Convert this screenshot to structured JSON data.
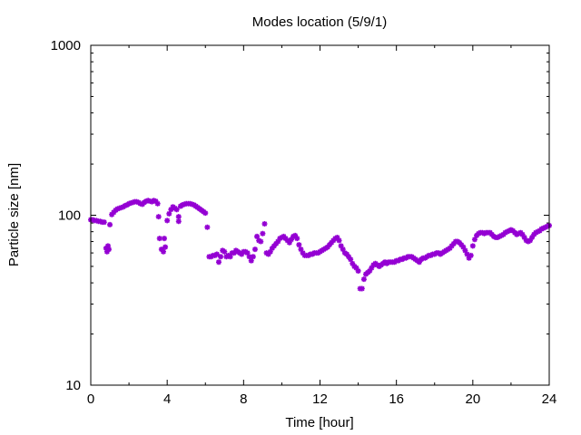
{
  "chart_data": {
    "type": "scatter",
    "title": "Modes location (5/9/1)",
    "xlabel": "Time [hour]",
    "ylabel": "Particle size [nm]",
    "xlim": [
      0,
      24
    ],
    "ylim": [
      10,
      1000
    ],
    "yscale": "log",
    "grid": false,
    "legend": "none",
    "x_ticks": [
      0,
      4,
      8,
      12,
      16,
      20,
      24
    ],
    "x_minor_ticks": [
      2,
      6,
      10,
      14,
      18,
      22
    ],
    "y_ticks": [
      10,
      100,
      1000
    ],
    "y_tick_labels": [
      "10",
      "100",
      "1000"
    ],
    "marker_color": "#9400d3",
    "series": [
      {
        "points": [
          [
            0.0,
            94
          ],
          [
            0.1,
            94
          ],
          [
            0.2,
            93
          ],
          [
            0.3,
            93
          ],
          [
            0.4,
            92
          ],
          [
            0.5,
            92
          ],
          [
            0.6,
            91
          ],
          [
            0.7,
            91
          ],
          [
            0.8,
            64
          ],
          [
            0.85,
            61
          ],
          [
            0.9,
            66
          ],
          [
            0.95,
            63
          ],
          [
            1.0,
            88
          ],
          [
            1.1,
            101
          ],
          [
            1.2,
            104
          ],
          [
            1.3,
            107
          ],
          [
            1.4,
            109
          ],
          [
            1.5,
            110
          ],
          [
            1.6,
            111
          ],
          [
            1.7,
            112
          ],
          [
            1.8,
            114
          ],
          [
            1.9,
            115
          ],
          [
            2.0,
            117
          ],
          [
            2.1,
            118
          ],
          [
            2.2,
            119
          ],
          [
            2.3,
            120
          ],
          [
            2.4,
            120
          ],
          [
            2.5,
            119
          ],
          [
            2.6,
            117
          ],
          [
            2.7,
            116
          ],
          [
            2.8,
            119
          ],
          [
            2.9,
            121
          ],
          [
            3.0,
            122
          ],
          [
            3.1,
            121
          ],
          [
            3.2,
            120
          ],
          [
            3.3,
            122
          ],
          [
            3.4,
            121
          ],
          [
            3.5,
            117
          ],
          [
            3.55,
            98
          ],
          [
            3.6,
            73
          ],
          [
            3.7,
            63
          ],
          [
            3.8,
            61
          ],
          [
            3.9,
            65
          ],
          [
            3.85,
            73
          ],
          [
            4.0,
            93
          ],
          [
            4.1,
            102
          ],
          [
            4.2,
            108
          ],
          [
            4.3,
            112
          ],
          [
            4.4,
            110
          ],
          [
            4.5,
            108
          ],
          [
            4.6,
            98
          ],
          [
            4.6,
            92
          ],
          [
            4.7,
            113
          ],
          [
            4.8,
            115
          ],
          [
            4.9,
            116
          ],
          [
            5.0,
            117
          ],
          [
            5.1,
            117
          ],
          [
            5.2,
            117
          ],
          [
            5.3,
            116
          ],
          [
            5.4,
            115
          ],
          [
            5.5,
            113
          ],
          [
            5.6,
            111
          ],
          [
            5.7,
            109
          ],
          [
            5.8,
            107
          ],
          [
            5.9,
            105
          ],
          [
            6.0,
            103
          ],
          [
            6.1,
            85
          ],
          [
            6.2,
            57
          ],
          [
            6.3,
            57
          ],
          [
            6.4,
            58
          ],
          [
            6.5,
            58
          ],
          [
            6.6,
            59
          ],
          [
            6.7,
            53
          ],
          [
            6.8,
            57
          ],
          [
            6.9,
            62
          ],
          [
            7.0,
            61
          ],
          [
            7.1,
            57
          ],
          [
            7.2,
            58
          ],
          [
            7.3,
            57
          ],
          [
            7.4,
            60
          ],
          [
            7.5,
            60
          ],
          [
            7.6,
            62
          ],
          [
            7.7,
            61
          ],
          [
            7.8,
            60
          ],
          [
            7.9,
            59
          ],
          [
            8.0,
            61
          ],
          [
            8.1,
            61
          ],
          [
            8.2,
            60
          ],
          [
            8.3,
            57
          ],
          [
            8.4,
            54
          ],
          [
            8.5,
            57
          ],
          [
            8.6,
            63
          ],
          [
            8.7,
            75
          ],
          [
            8.8,
            71
          ],
          [
            8.9,
            70
          ],
          [
            9.0,
            78
          ],
          [
            9.1,
            89
          ],
          [
            9.2,
            60
          ],
          [
            9.3,
            59
          ],
          [
            9.4,
            61
          ],
          [
            9.5,
            64
          ],
          [
            9.6,
            66
          ],
          [
            9.7,
            68
          ],
          [
            9.8,
            70
          ],
          [
            9.9,
            73
          ],
          [
            10.0,
            74
          ],
          [
            10.1,
            75
          ],
          [
            10.2,
            73
          ],
          [
            10.3,
            71
          ],
          [
            10.4,
            69
          ],
          [
            10.5,
            72
          ],
          [
            10.6,
            75
          ],
          [
            10.7,
            76
          ],
          [
            10.8,
            73
          ],
          [
            10.9,
            67
          ],
          [
            11.0,
            63
          ],
          [
            11.1,
            60
          ],
          [
            11.2,
            58
          ],
          [
            11.3,
            58
          ],
          [
            11.4,
            58
          ],
          [
            11.5,
            59
          ],
          [
            11.6,
            59
          ],
          [
            11.7,
            60
          ],
          [
            11.8,
            60
          ],
          [
            11.9,
            60
          ],
          [
            12.0,
            61
          ],
          [
            12.1,
            62
          ],
          [
            12.2,
            63
          ],
          [
            12.3,
            64
          ],
          [
            12.4,
            65
          ],
          [
            12.5,
            67
          ],
          [
            12.6,
            69
          ],
          [
            12.7,
            71
          ],
          [
            12.8,
            73
          ],
          [
            12.9,
            74
          ],
          [
            13.0,
            71
          ],
          [
            13.1,
            66
          ],
          [
            13.2,
            63
          ],
          [
            13.3,
            60
          ],
          [
            13.4,
            59
          ],
          [
            13.5,
            57
          ],
          [
            13.6,
            55
          ],
          [
            13.7,
            52
          ],
          [
            13.8,
            50
          ],
          [
            13.9,
            49
          ],
          [
            14.0,
            47
          ],
          [
            14.1,
            37
          ],
          [
            14.2,
            37
          ],
          [
            14.3,
            42
          ],
          [
            14.4,
            45
          ],
          [
            14.5,
            46
          ],
          [
            14.6,
            47
          ],
          [
            14.7,
            49
          ],
          [
            14.8,
            51
          ],
          [
            14.9,
            52
          ],
          [
            15.0,
            51
          ],
          [
            15.1,
            50
          ],
          [
            15.2,
            51
          ],
          [
            15.3,
            52
          ],
          [
            15.4,
            53
          ],
          [
            15.5,
            52
          ],
          [
            15.6,
            53
          ],
          [
            15.7,
            53
          ],
          [
            15.8,
            53
          ],
          [
            15.9,
            53
          ],
          [
            16.0,
            54
          ],
          [
            16.1,
            54
          ],
          [
            16.2,
            55
          ],
          [
            16.3,
            55
          ],
          [
            16.4,
            56
          ],
          [
            16.5,
            56
          ],
          [
            16.6,
            57
          ],
          [
            16.7,
            57
          ],
          [
            16.8,
            57
          ],
          [
            16.9,
            56
          ],
          [
            17.0,
            55
          ],
          [
            17.1,
            54
          ],
          [
            17.2,
            53
          ],
          [
            17.3,
            55
          ],
          [
            17.4,
            56
          ],
          [
            17.5,
            56
          ],
          [
            17.6,
            57
          ],
          [
            17.7,
            58
          ],
          [
            17.8,
            58
          ],
          [
            17.9,
            59
          ],
          [
            18.0,
            59
          ],
          [
            18.1,
            60
          ],
          [
            18.2,
            60
          ],
          [
            18.3,
            59
          ],
          [
            18.4,
            60
          ],
          [
            18.5,
            61
          ],
          [
            18.6,
            62
          ],
          [
            18.7,
            63
          ],
          [
            18.8,
            64
          ],
          [
            18.9,
            66
          ],
          [
            19.0,
            68
          ],
          [
            19.1,
            70
          ],
          [
            19.2,
            70
          ],
          [
            19.3,
            69
          ],
          [
            19.4,
            67
          ],
          [
            19.5,
            65
          ],
          [
            19.6,
            62
          ],
          [
            19.7,
            59
          ],
          [
            19.8,
            56
          ],
          [
            19.9,
            58
          ],
          [
            20.0,
            66
          ],
          [
            20.1,
            72
          ],
          [
            20.2,
            76
          ],
          [
            20.3,
            78
          ],
          [
            20.4,
            79
          ],
          [
            20.5,
            79
          ],
          [
            20.6,
            78
          ],
          [
            20.7,
            79
          ],
          [
            20.8,
            79
          ],
          [
            20.9,
            79
          ],
          [
            21.0,
            77
          ],
          [
            21.1,
            75
          ],
          [
            21.2,
            74
          ],
          [
            21.3,
            74
          ],
          [
            21.4,
            75
          ],
          [
            21.5,
            76
          ],
          [
            21.6,
            77
          ],
          [
            21.7,
            79
          ],
          [
            21.8,
            80
          ],
          [
            21.9,
            81
          ],
          [
            22.0,
            82
          ],
          [
            22.1,
            81
          ],
          [
            22.2,
            79
          ],
          [
            22.3,
            77
          ],
          [
            22.4,
            78
          ],
          [
            22.5,
            79
          ],
          [
            22.6,
            77
          ],
          [
            22.7,
            74
          ],
          [
            22.8,
            71
          ],
          [
            22.9,
            70
          ],
          [
            23.0,
            71
          ],
          [
            23.1,
            74
          ],
          [
            23.2,
            77
          ],
          [
            23.3,
            79
          ],
          [
            23.4,
            80
          ],
          [
            23.5,
            81
          ],
          [
            23.6,
            83
          ],
          [
            23.7,
            84
          ],
          [
            23.8,
            85
          ],
          [
            23.9,
            86
          ],
          [
            24.0,
            87
          ]
        ]
      }
    ]
  }
}
